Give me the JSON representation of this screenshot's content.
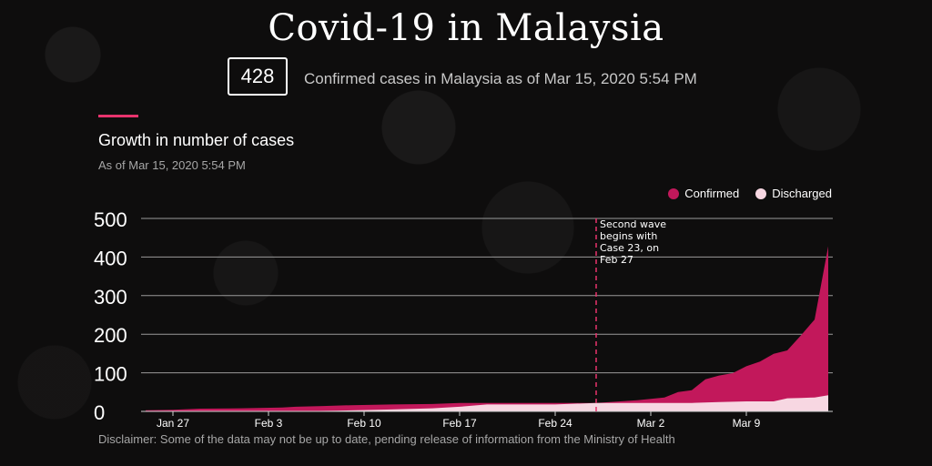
{
  "header": {
    "title": "Covid-19 in Malaysia",
    "count": "428",
    "subtitle": "Confirmed cases in Malaysia as of Mar 15, 2020 5:54 PM"
  },
  "section": {
    "title": "Growth in number of cases",
    "subtitle": "As of Mar 15, 2020 5:54 PM"
  },
  "disclaimer": "Disclaimer: Some of the data may not be up to date, pending release of information from the Ministry of Health",
  "colors": {
    "confirmed": "#c2185b",
    "discharged": "#f7d7e2",
    "accent": "#e8336d"
  },
  "chart_data": {
    "type": "area",
    "ylim": [
      0,
      500
    ],
    "yticks": [
      0,
      100,
      200,
      300,
      400,
      500
    ],
    "grid": true,
    "legend_position": "top-right",
    "date_range": [
      "Jan 25",
      "Mar 15"
    ],
    "xtick_labels": [
      {
        "label": "Jan 27",
        "date": "Jan 27"
      },
      {
        "label": "Feb 3",
        "date": "Feb 3"
      },
      {
        "label": "Feb 10",
        "date": "Feb 10"
      },
      {
        "label": "Feb 17",
        "date": "Feb 17"
      },
      {
        "label": "Feb 24",
        "date": "Feb 24"
      },
      {
        "label": "Mar 2",
        "date": "Mar 2"
      },
      {
        "label": "Mar 9",
        "date": "Mar 9"
      }
    ],
    "annotation": {
      "date": "Feb 27",
      "lines": [
        "Second wave",
        "begins with",
        "Case 23, on",
        "Feb 27"
      ]
    },
    "series": [
      {
        "name": "Confirmed",
        "points": [
          [
            "Jan 25",
            3
          ],
          [
            "Jan 27",
            4
          ],
          [
            "Jan 29",
            7
          ],
          [
            "Feb 1",
            8
          ],
          [
            "Feb 4",
            10
          ],
          [
            "Feb 5",
            12
          ],
          [
            "Feb 7",
            14
          ],
          [
            "Feb 9",
            16
          ],
          [
            "Feb 12",
            18
          ],
          [
            "Feb 15",
            19
          ],
          [
            "Feb 17",
            22
          ],
          [
            "Feb 27",
            22
          ],
          [
            "Feb 28",
            24
          ],
          [
            "Mar 1",
            29
          ],
          [
            "Mar 3",
            36
          ],
          [
            "Mar 4",
            50
          ],
          [
            "Mar 5",
            55
          ],
          [
            "Mar 6",
            83
          ],
          [
            "Mar 7",
            93
          ],
          [
            "Mar 8",
            99
          ],
          [
            "Mar 9",
            117
          ],
          [
            "Mar 10",
            129
          ],
          [
            "Mar 11",
            149
          ],
          [
            "Mar 12",
            158
          ],
          [
            "Mar 13",
            197
          ],
          [
            "Mar 14",
            238
          ],
          [
            "Mar 15",
            428
          ]
        ]
      },
      {
        "name": "Discharged",
        "points": [
          [
            "Jan 25",
            0
          ],
          [
            "Feb 4",
            0
          ],
          [
            "Feb 8",
            2
          ],
          [
            "Feb 12",
            5
          ],
          [
            "Feb 15",
            8
          ],
          [
            "Feb 17",
            12
          ],
          [
            "Feb 19",
            18
          ],
          [
            "Feb 24",
            18
          ],
          [
            "Feb 27",
            22
          ],
          [
            "Mar 2",
            22
          ],
          [
            "Mar 5",
            22
          ],
          [
            "Mar 7",
            24
          ],
          [
            "Mar 9",
            26
          ],
          [
            "Mar 11",
            26
          ],
          [
            "Mar 12",
            34
          ],
          [
            "Mar 13",
            35
          ],
          [
            "Mar 14",
            36
          ],
          [
            "Mar 15",
            42
          ]
        ]
      }
    ]
  }
}
